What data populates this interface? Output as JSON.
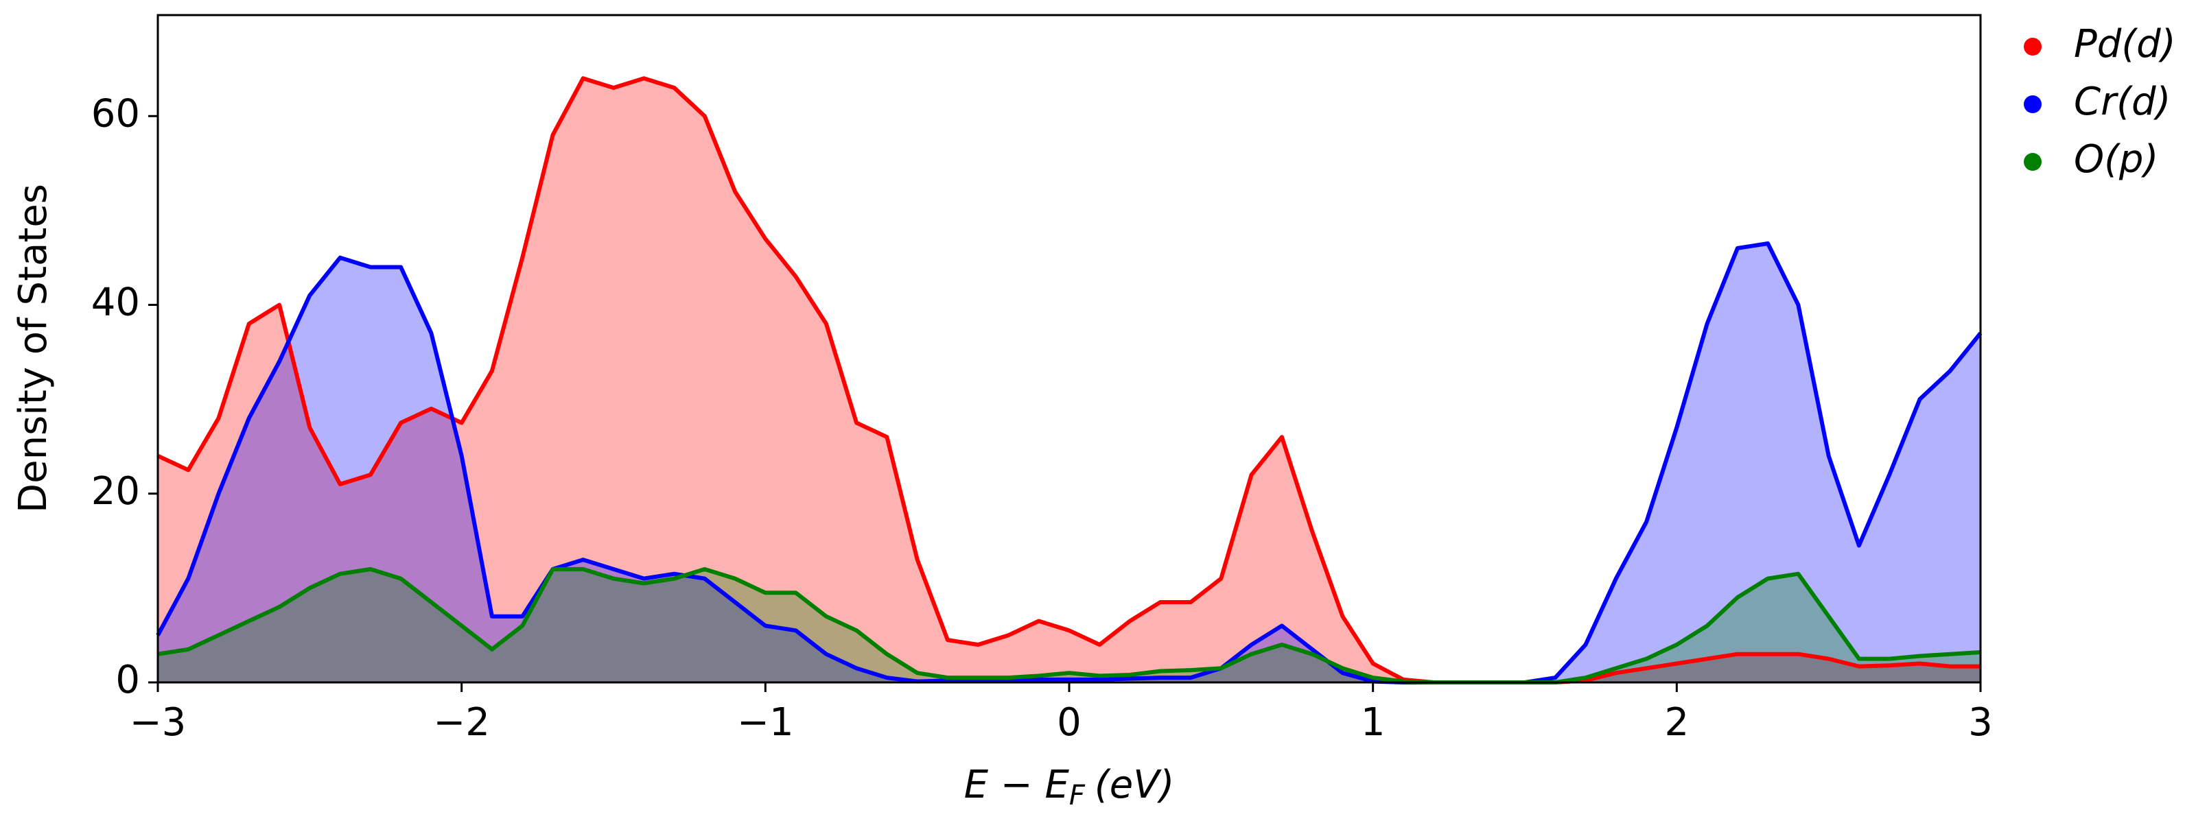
{
  "chart_data": {
    "type": "area",
    "x_label": "E − E",
    "x_label_sub": "F",
    "x_label_unit": "(eV)",
    "y_label": "Density of States",
    "x": [
      -3.0,
      -2.9,
      -2.8,
      -2.7,
      -2.6,
      -2.5,
      -2.4,
      -2.3,
      -2.2,
      -2.1,
      -2.0,
      -1.9,
      -1.8,
      -1.7,
      -1.6,
      -1.5,
      -1.4,
      -1.3,
      -1.2,
      -1.1,
      -1.0,
      -0.9,
      -0.8,
      -0.7,
      -0.6,
      -0.5,
      -0.4,
      -0.3,
      -0.2,
      -0.1,
      0.0,
      0.1,
      0.2,
      0.3,
      0.4,
      0.5,
      0.6,
      0.7,
      0.8,
      0.9,
      1.0,
      1.1,
      1.2,
      1.3,
      1.4,
      1.5,
      1.6,
      1.7,
      1.8,
      1.9,
      2.0,
      2.1,
      2.2,
      2.3,
      2.4,
      2.5,
      2.6,
      2.7,
      2.8,
      2.9,
      3.0
    ],
    "series": [
      {
        "name": "Pd(d)",
        "color": "#ff0000",
        "values": [
          24,
          22.5,
          28,
          38,
          40,
          27,
          21,
          22,
          27.5,
          29,
          27.5,
          33,
          45,
          58,
          64,
          63,
          64,
          63,
          60,
          52,
          47,
          43,
          38,
          27.5,
          26,
          13,
          4.5,
          4,
          5,
          6.5,
          5.5,
          4,
          6.5,
          8.5,
          8.5,
          11,
          22,
          26,
          16,
          7,
          2,
          0.3,
          0,
          0,
          0,
          0,
          0,
          0.2,
          1,
          1.5,
          2,
          2.5,
          3,
          3,
          3,
          2.5,
          1.7,
          1.8,
          2,
          1.7,
          1.7
        ]
      },
      {
        "name": "Cr(d)",
        "color": "#0000ff",
        "values": [
          5,
          11,
          20,
          28,
          34,
          41,
          45,
          44,
          44,
          37,
          24,
          7,
          7,
          12,
          13,
          12,
          11,
          11.5,
          11,
          8.5,
          6,
          5.5,
          3,
          1.5,
          0.5,
          0.1,
          0.2,
          0.2,
          0.2,
          0.3,
          0.3,
          0.3,
          0.4,
          0.5,
          0.5,
          1.5,
          4,
          6,
          3.5,
          1,
          0.1,
          0,
          0,
          0,
          0,
          0,
          0.5,
          4,
          11,
          17,
          27,
          38,
          46,
          46.5,
          40,
          24,
          14.5,
          22,
          30,
          33,
          37
        ]
      },
      {
        "name": "O(p)",
        "color": "#008000",
        "values": [
          3,
          3.5,
          5,
          6.5,
          8,
          10,
          11.5,
          12,
          11,
          8.5,
          6,
          3.5,
          6,
          12,
          12,
          11,
          10.5,
          11,
          12,
          11,
          9.5,
          9.5,
          7,
          5.5,
          3,
          1,
          0.5,
          0.5,
          0.5,
          0.7,
          1.0,
          0.7,
          0.8,
          1.2,
          1.3,
          1.5,
          3,
          4,
          3,
          1.5,
          0.5,
          0.1,
          0,
          0,
          0,
          0,
          0,
          0.5,
          1.5,
          2.5,
          4,
          6,
          9,
          11,
          11.5,
          7,
          2.5,
          2.5,
          2.8,
          3,
          3.2
        ]
      }
    ],
    "xlim": [
      -3,
      3
    ],
    "ylim": [
      0,
      70.7
    ],
    "xticks": [
      {
        "value": -3,
        "label": "−3"
      },
      {
        "value": -2,
        "label": "−2"
      },
      {
        "value": -1,
        "label": "−1"
      },
      0,
      1,
      2,
      3
    ],
    "yticks": [
      0,
      20,
      40,
      60
    ],
    "fill_opacity": 0.3,
    "legend": "outside-right"
  }
}
